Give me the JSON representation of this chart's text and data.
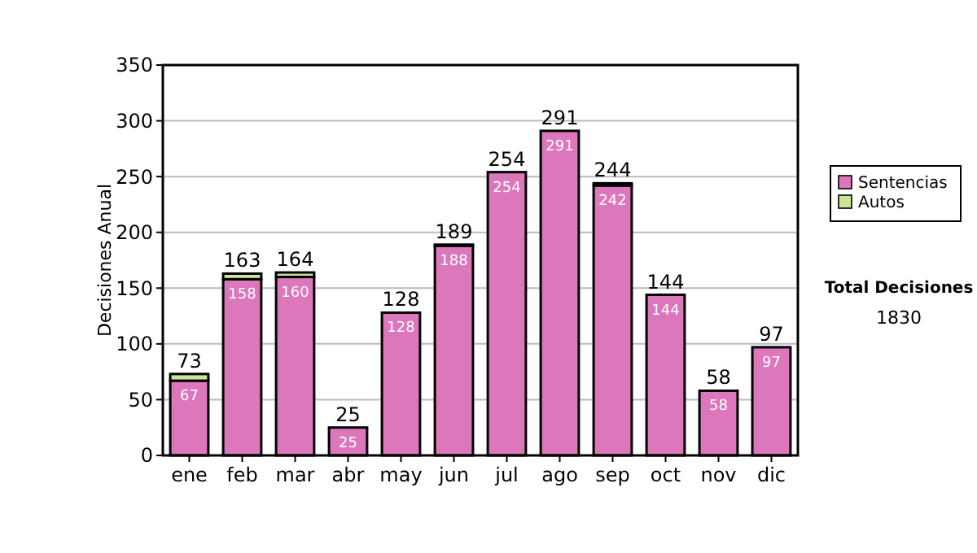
{
  "chart_data": {
    "type": "bar",
    "stacked": true,
    "ylabel": "Decisiones Anual",
    "categories": [
      "ene",
      "feb",
      "mar",
      "abr",
      "may",
      "jun",
      "jul",
      "ago",
      "sep",
      "oct",
      "nov",
      "dic"
    ],
    "series": [
      {
        "name": "Sentencias",
        "color": "#dd77bb",
        "values": [
          67,
          158,
          160,
          25,
          128,
          188,
          254,
          291,
          242,
          144,
          58,
          97
        ],
        "value_labels": [
          "67",
          "158",
          "160",
          "25",
          "128",
          "188",
          "254",
          "291",
          "242",
          "144",
          "58",
          "97"
        ]
      },
      {
        "name": "Autos",
        "color": "#cce699",
        "values": [
          6,
          5,
          4,
          0,
          0,
          1,
          0,
          0,
          2,
          0,
          0,
          0
        ]
      }
    ],
    "totals": [
      "73",
      "163",
      "164",
      "25",
      "128",
      "189",
      "254",
      "291",
      "244",
      "144",
      "58",
      "97"
    ],
    "ylim": [
      0,
      350
    ],
    "yticks": [
      0,
      50,
      100,
      150,
      200,
      250,
      300,
      350
    ],
    "grid": "y",
    "legend": "right",
    "annotations": [
      "Total Decisiones",
      "1830"
    ]
  }
}
